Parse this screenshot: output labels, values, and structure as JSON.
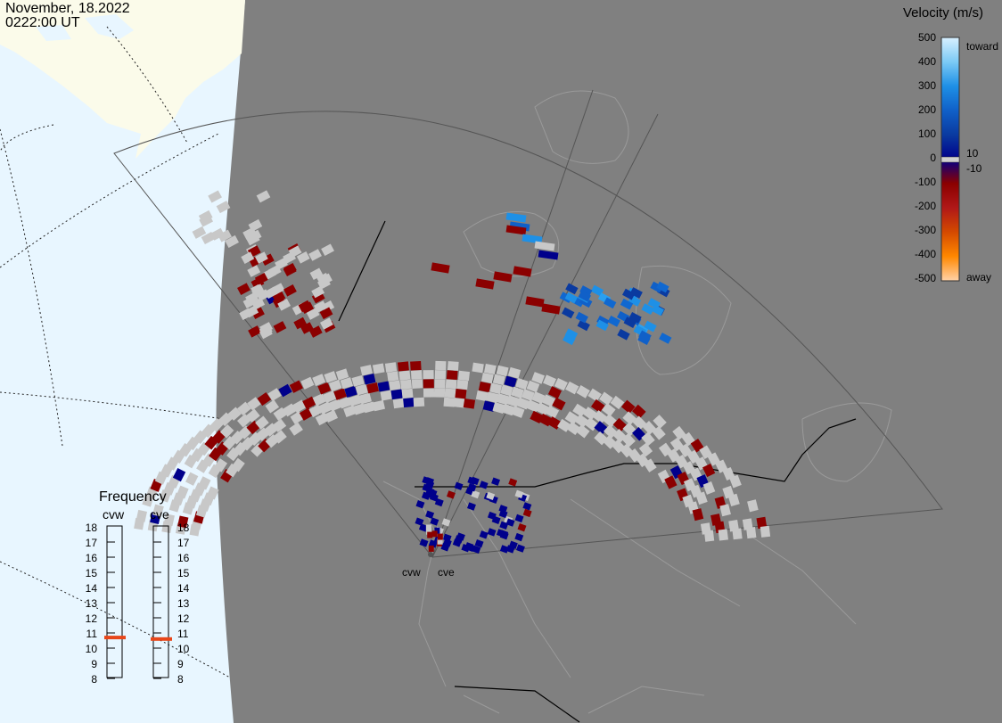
{
  "timestamp": {
    "date": "November, 18.2022",
    "time": "0222:00 UT"
  },
  "colorbar": {
    "title": "Velocity (m/s)",
    "ticks": [
      "500",
      "400",
      "300",
      "200",
      "100",
      "0",
      "-100",
      "-200",
      "-300",
      "-400",
      "-500"
    ],
    "toward_label": "toward",
    "away_label": "away",
    "pos_threshold": "10",
    "neg_threshold": "-10",
    "stops": [
      "#d8f0ff",
      "#7ccaf5",
      "#1e90e6",
      "#1060c8",
      "#0a3aa0",
      "#00008b",
      "#8b0000",
      "#b01818",
      "#d44a00",
      "#ff8800",
      "#ffd2a8"
    ]
  },
  "frequency": {
    "title": "Frequency",
    "radars": [
      {
        "name": "cvw",
        "value_mhz": 10.7
      },
      {
        "name": "cve",
        "value_mhz": 10.6
      }
    ],
    "scale": [
      "18",
      "17",
      "16",
      "15",
      "14",
      "13",
      "12",
      "11",
      "10",
      "9",
      "8"
    ],
    "marker_color": "#e8461a"
  },
  "radar_sites": {
    "west_label": "cvw",
    "east_label": "cve"
  },
  "colors": {
    "night_side": "#808080",
    "day_ocean": "#e8f6ff",
    "day_land": "#fbfbea",
    "ground_scatter": "#c8c8c8",
    "negative_velocity": "#8b0000",
    "positive_velocity": "#00008b",
    "fov_outline": "#555555"
  }
}
